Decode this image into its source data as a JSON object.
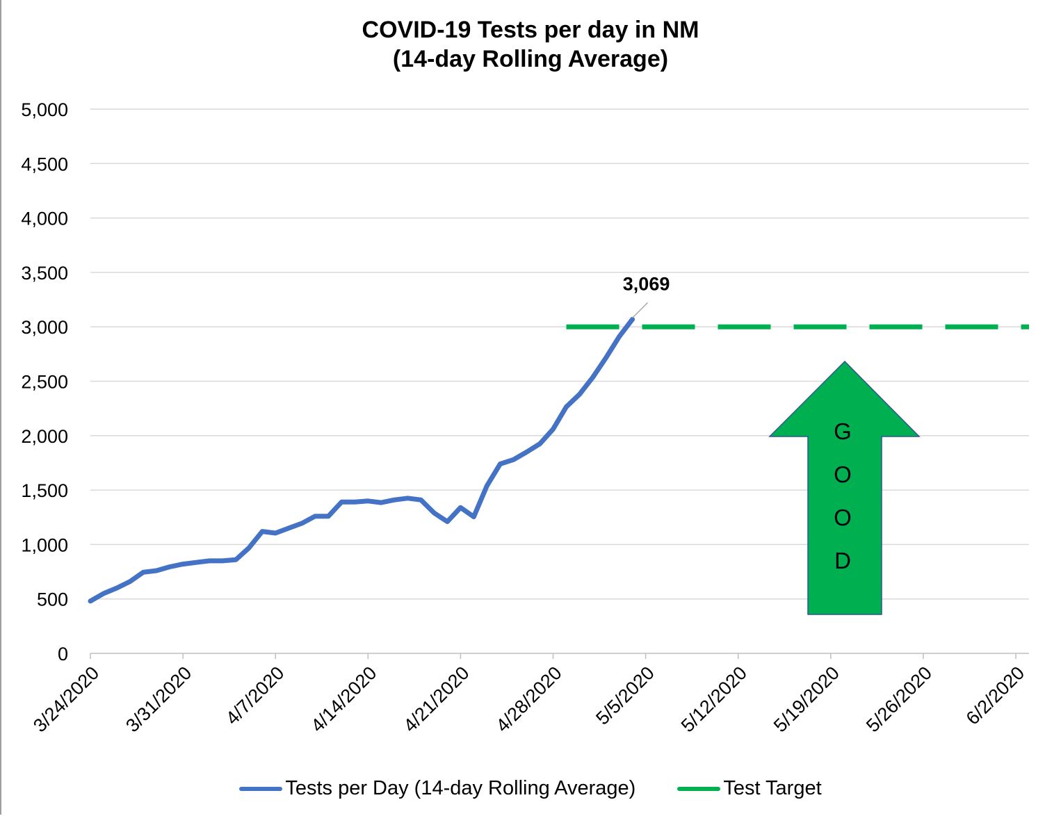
{
  "chart_data": {
    "type": "line",
    "title": "COVID-19 Tests per day in NM\n(14-day Rolling Average)",
    "ylim": [
      0,
      5000
    ],
    "yticks": [
      0,
      500,
      1000,
      1500,
      2000,
      2500,
      3000,
      3500,
      4000,
      4500,
      5000
    ],
    "ytick_labels": [
      "0",
      "500",
      "1,000",
      "1,500",
      "2,000",
      "2,500",
      "3,000",
      "3,500",
      "4,000",
      "4,500",
      "5,000"
    ],
    "xlim": [
      "3/24/2020",
      "6/3/2020"
    ],
    "xtick_labels": [
      "3/24/2020",
      "3/31/2020",
      "4/7/2020",
      "4/14/2020",
      "4/21/2020",
      "4/28/2020",
      "5/5/2020",
      "5/12/2020",
      "5/19/2020",
      "5/26/2020",
      "6/2/2020"
    ],
    "grid": true,
    "legend_position": "bottom",
    "series": [
      {
        "name": "Tests per Day (14-day Rolling Average)",
        "color": "#4472c4",
        "style": "solid",
        "x": [
          "3/24/2020",
          "3/25/2020",
          "3/26/2020",
          "3/27/2020",
          "3/28/2020",
          "3/29/2020",
          "3/30/2020",
          "3/31/2020",
          "4/1/2020",
          "4/2/2020",
          "4/3/2020",
          "4/4/2020",
          "4/5/2020",
          "4/6/2020",
          "4/7/2020",
          "4/8/2020",
          "4/9/2020",
          "4/10/2020",
          "4/11/2020",
          "4/12/2020",
          "4/13/2020",
          "4/14/2020",
          "4/15/2020",
          "4/16/2020",
          "4/17/2020",
          "4/18/2020",
          "4/19/2020",
          "4/20/2020",
          "4/21/2020",
          "4/22/2020",
          "4/23/2020",
          "4/24/2020",
          "4/25/2020",
          "4/26/2020",
          "4/27/2020",
          "4/28/2020",
          "4/29/2020",
          "4/30/2020",
          "5/1/2020",
          "5/2/2020",
          "5/3/2020",
          "5/4/2020"
        ],
        "values": [
          480,
          550,
          600,
          660,
          745,
          760,
          795,
          820,
          835,
          850,
          850,
          860,
          970,
          1120,
          1105,
          1150,
          1195,
          1260,
          1260,
          1390,
          1390,
          1400,
          1385,
          1410,
          1425,
          1410,
          1290,
          1210,
          1340,
          1255,
          1540,
          1740,
          1780,
          1850,
          1925,
          2060,
          2265,
          2380,
          2535,
          2715,
          2910,
          3069
        ]
      },
      {
        "name": "Test Target",
        "color": "#00b050",
        "style": "dashed",
        "x": [
          "4/29/2020",
          "6/3/2020"
        ],
        "values": [
          3000,
          3000
        ]
      }
    ],
    "annotations": [
      {
        "text": "3,069",
        "x": "5/4/2020",
        "y": 3069
      },
      {
        "text": "GOOD",
        "kind": "arrow",
        "color": "#00b050",
        "direction": "up"
      }
    ]
  }
}
